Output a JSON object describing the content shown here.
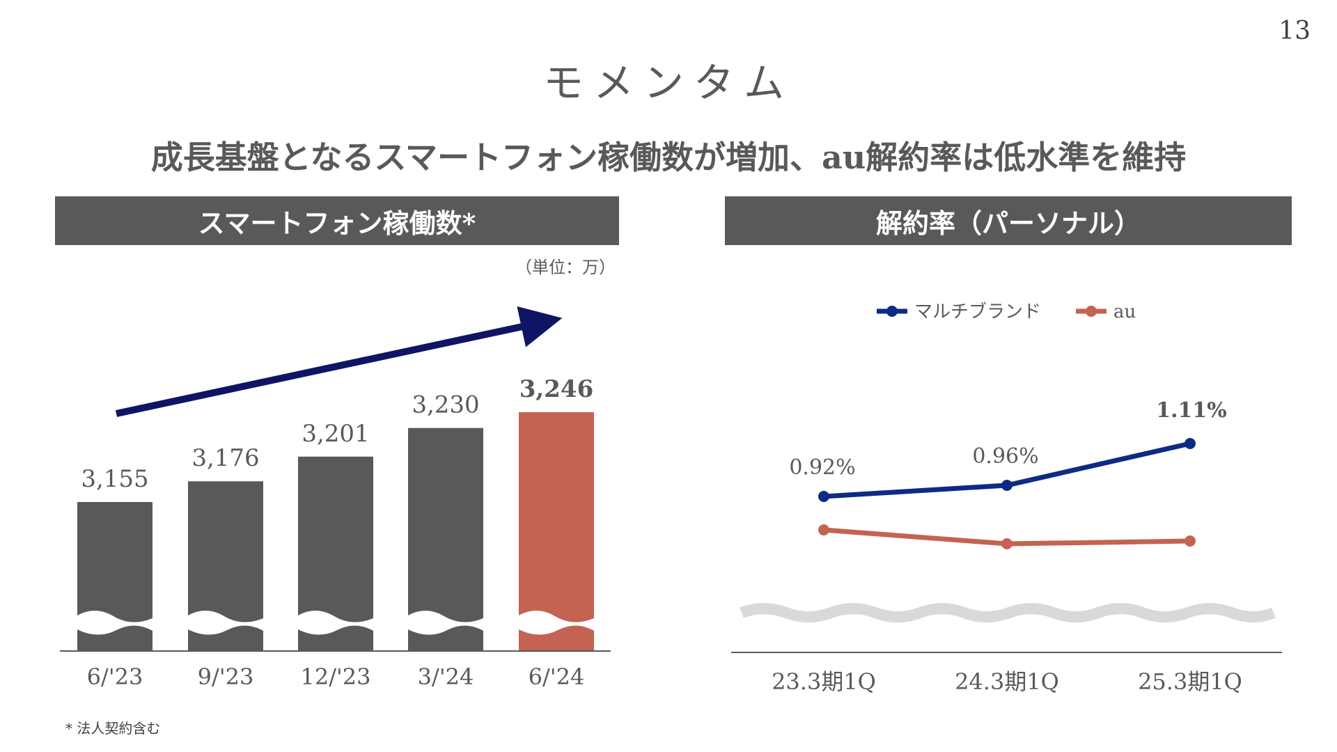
{
  "page_number": "13",
  "title": "モメンタム",
  "subtitle": "成長基盤となるスマートフォン稼働数が増加、au解約率は低水準を維持",
  "footnote": "* 法人契約含む",
  "colors": {
    "bar": "#595959",
    "highlight": "#C46352",
    "arrow": "#0F1464",
    "multibrand": "#0D2A85",
    "au": "#C46352",
    "wave": "#D9D9D9"
  },
  "chart_data": [
    {
      "type": "bar",
      "title": "スマートフォン稼働数*",
      "unit_label": "（単位：万）",
      "categories": [
        "6/'23",
        "9/'23",
        "12/'23",
        "3/'24",
        "6/'24"
      ],
      "values": [
        3155,
        3176,
        3201,
        3230,
        3246
      ],
      "value_labels": [
        "3,155",
        "3,176",
        "3,201",
        "3,230",
        "3,246"
      ],
      "highlight_index": 4,
      "axis_break": true,
      "trend_arrow": "up"
    },
    {
      "type": "line",
      "title": "解約率（パーソナル）",
      "categories": [
        "23.3期1Q",
        "24.3期1Q",
        "25.3期1Q"
      ],
      "legend_position": "top-center",
      "axis_break": true,
      "series": [
        {
          "name": "マルチブランド",
          "values": [
            0.92,
            0.96,
            1.11
          ],
          "labels": [
            "0.92%",
            "0.96%",
            "1.11%"
          ]
        },
        {
          "name": "au",
          "values": [
            0.8,
            0.75,
            0.76
          ],
          "labels": []
        }
      ]
    }
  ]
}
